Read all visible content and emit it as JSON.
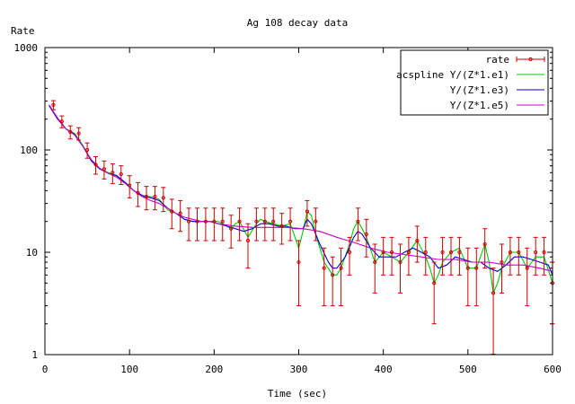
{
  "chart_data": {
    "type": "line",
    "title": "Ag 108 decay data",
    "xlabel": "Time (sec)",
    "ylabel": "Rate",
    "xlim": [
      0,
      600
    ],
    "ylim": [
      1,
      1000
    ],
    "yscale": "log",
    "grid": false,
    "legend_position": "top-right",
    "x_ticks": [
      0,
      100,
      200,
      300,
      400,
      500,
      600
    ],
    "x_tick_labels": [
      "0",
      "100",
      "200",
      "300",
      "400",
      "500",
      "600"
    ],
    "y_ticks": [
      1,
      10,
      100,
      1000
    ],
    "y_tick_labels": [
      "1",
      "10",
      "100",
      "1000"
    ],
    "data_points": {
      "name": "rate",
      "color": "#cc0000",
      "x": [
        10,
        20,
        30,
        40,
        50,
        60,
        70,
        80,
        90,
        100,
        110,
        120,
        130,
        140,
        150,
        160,
        170,
        180,
        190,
        200,
        210,
        220,
        230,
        240,
        250,
        260,
        270,
        280,
        290,
        300,
        310,
        320,
        330,
        340,
        350,
        360,
        370,
        380,
        390,
        400,
        410,
        420,
        430,
        440,
        450,
        460,
        470,
        480,
        490,
        500,
        510,
        520,
        530,
        540,
        550,
        560,
        570,
        580,
        590,
        600
      ],
      "y": [
        275,
        190,
        150,
        145,
        100,
        72,
        65,
        60,
        58,
        45,
        38,
        35,
        35,
        34,
        25,
        24,
        20,
        20,
        20,
        20,
        20,
        17,
        20,
        13,
        20,
        20,
        20,
        18,
        20,
        8,
        25,
        20,
        7,
        6,
        7,
        10,
        20,
        15,
        8,
        10,
        10,
        8,
        10,
        13,
        10,
        5,
        10,
        10,
        10,
        7,
        7,
        12,
        4,
        8,
        10,
        10,
        7,
        10,
        10,
        5
      ],
      "yerr": [
        28,
        25,
        22,
        20,
        17,
        14,
        13,
        13,
        12,
        11,
        10,
        9,
        9,
        9,
        8,
        8,
        7,
        7,
        7,
        7,
        7,
        6,
        7,
        6,
        7,
        7,
        7,
        6,
        7,
        5,
        7,
        7,
        4,
        3,
        4,
        4,
        7,
        6,
        4,
        4,
        4,
        4,
        4,
        5,
        4,
        3,
        4,
        4,
        4,
        4,
        4,
        5,
        3,
        4,
        4,
        4,
        4,
        4,
        4,
        3
      ]
    },
    "series": [
      {
        "name": "acspline Y/(Z*1.e1)",
        "color": "#00cc00",
        "x": [
          5,
          15,
          25,
          35,
          45,
          55,
          65,
          75,
          85,
          95,
          105,
          115,
          125,
          135,
          145,
          155,
          165,
          175,
          185,
          195,
          205,
          215,
          220,
          225,
          230,
          240,
          250,
          255,
          260,
          270,
          280,
          290,
          300,
          305,
          310,
          315,
          320,
          330,
          340,
          345,
          350,
          360,
          365,
          370,
          375,
          380,
          390,
          400,
          410,
          420,
          430,
          440,
          450,
          455,
          460,
          465,
          470,
          480,
          490,
          500,
          510,
          520,
          525,
          530,
          535,
          540,
          550,
          560,
          570,
          580,
          590,
          600
        ],
        "y": [
          275,
          205,
          160,
          145,
          110,
          78,
          65,
          60,
          56,
          47,
          40,
          35,
          35,
          33,
          26,
          24,
          21,
          20,
          20,
          20,
          20,
          18,
          17,
          19,
          20,
          14,
          19,
          21,
          20,
          19,
          18,
          19,
          11,
          16,
          25,
          23,
          15,
          8,
          6,
          6,
          7,
          12,
          17,
          20,
          17,
          14,
          8,
          10,
          9,
          8,
          10,
          13,
          9,
          7,
          5,
          6,
          8,
          10,
          11,
          7,
          7,
          12,
          8,
          4,
          5,
          7,
          10,
          10,
          7,
          9,
          9,
          5
        ]
      },
      {
        "name": "Y/(Z*1.e3)",
        "color": "#0000cc",
        "x": [
          5,
          15,
          25,
          35,
          45,
          55,
          65,
          75,
          85,
          95,
          105,
          115,
          125,
          135,
          145,
          155,
          165,
          175,
          185,
          195,
          205,
          215,
          225,
          235,
          245,
          255,
          265,
          275,
          285,
          295,
          305,
          310,
          315,
          325,
          335,
          340,
          345,
          355,
          365,
          370,
          375,
          385,
          395,
          405,
          415,
          425,
          435,
          445,
          455,
          465,
          475,
          485,
          495,
          505,
          515,
          525,
          535,
          545,
          555,
          565,
          575,
          585,
          595,
          600
        ],
        "y": [
          270,
          200,
          160,
          142,
          108,
          78,
          65,
          59,
          56,
          48,
          40,
          36,
          34,
          32,
          27,
          24,
          21,
          20,
          20,
          20,
          19,
          18,
          17,
          16,
          17,
          19,
          19,
          18,
          18,
          17,
          17,
          21,
          19,
          12,
          8,
          7,
          7,
          9,
          14,
          16,
          15,
          11,
          9,
          9,
          9,
          10,
          11,
          10,
          9,
          7,
          7.5,
          9,
          8.5,
          8,
          8,
          7,
          6.5,
          7.5,
          9,
          9,
          8.5,
          8,
          7.5,
          6
        ]
      },
      {
        "name": "Y/(Z*1.e5)",
        "color": "#cc00cc",
        "x": [
          5,
          15,
          25,
          35,
          45,
          55,
          65,
          75,
          85,
          95,
          105,
          115,
          125,
          135,
          145,
          155,
          165,
          175,
          185,
          195,
          205,
          225,
          245,
          265,
          285,
          305,
          325,
          345,
          365,
          385,
          405,
          425,
          445,
          465,
          485,
          505,
          525,
          545,
          565,
          585,
          600
        ],
        "y": [
          275,
          205,
          160,
          140,
          108,
          80,
          66,
          59,
          54,
          47,
          40,
          35,
          32,
          30,
          27,
          24,
          22,
          21,
          20,
          20,
          19,
          18,
          17.5,
          17.5,
          17.5,
          17,
          16,
          14,
          12.5,
          11,
          10,
          9.5,
          9,
          8.5,
          8.5,
          8,
          8,
          7.5,
          7.5,
          7,
          6.5
        ]
      }
    ]
  }
}
